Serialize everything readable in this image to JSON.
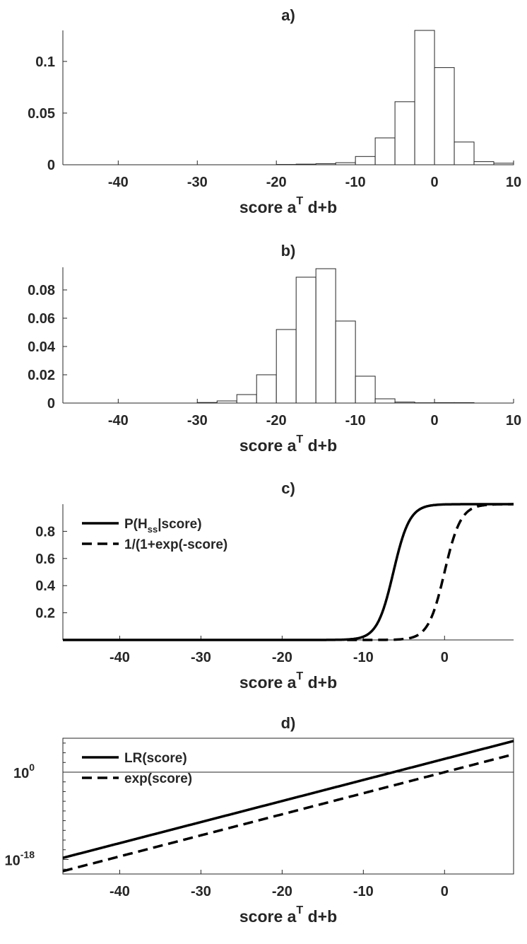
{
  "chart_data": [
    {
      "type": "bar",
      "title": "a)",
      "xlabel": "score a",
      "xlabel_sup": "T",
      "xlabel_tail": " d+b",
      "xlim": [
        -47,
        10
      ],
      "ylim": [
        0,
        0.13
      ],
      "xticks": [
        -40,
        -30,
        -20,
        -10,
        0,
        10
      ],
      "yticks": [
        0,
        0.05,
        0.1
      ],
      "ytick_labels": [
        "0",
        "0.05",
        "0.1"
      ],
      "bin_width": 2.5,
      "bin_centers": [
        -18.75,
        -16.25,
        -13.75,
        -11.25,
        -8.75,
        -6.25,
        -3.75,
        -1.25,
        1.25,
        3.75,
        6.25,
        8.75
      ],
      "values": [
        0.0003,
        0.0006,
        0.001,
        0.002,
        0.008,
        0.026,
        0.061,
        0.13,
        0.094,
        0.022,
        0.003,
        0.0015
      ]
    },
    {
      "type": "bar",
      "title": "b)",
      "xlabel": "score a",
      "xlabel_sup": "T",
      "xlabel_tail": " d+b",
      "xlim": [
        -47,
        10
      ],
      "ylim": [
        0,
        0.096
      ],
      "xticks": [
        -40,
        -30,
        -20,
        -10,
        0,
        10
      ],
      "yticks": [
        0,
        0.02,
        0.04,
        0.06,
        0.08
      ],
      "ytick_labels": [
        "0",
        "0.02",
        "0.04",
        "0.06",
        "0.08"
      ],
      "bin_width": 2.5,
      "bin_centers": [
        -28.75,
        -26.25,
        -23.75,
        -21.25,
        -18.75,
        -16.25,
        -13.75,
        -11.25,
        -8.75,
        -6.25,
        -3.75,
        -1.25,
        1.25,
        3.75
      ],
      "values": [
        0.0004,
        0.0015,
        0.006,
        0.02,
        0.052,
        0.089,
        0.095,
        0.058,
        0.019,
        0.003,
        0.0007,
        0.0002,
        0.0003,
        0.0003
      ]
    },
    {
      "type": "line",
      "title": "c)",
      "xlabel": "score a",
      "xlabel_sup": "T",
      "xlabel_tail": " d+b",
      "xlim": [
        -47,
        8.5
      ],
      "ylim": [
        0,
        1
      ],
      "xticks": [
        -40,
        -30,
        -20,
        -10,
        0
      ],
      "yticks": [
        0.2,
        0.4,
        0.6,
        0.8
      ],
      "ytick_labels": [
        "0.2",
        "0.4",
        "0.6",
        "0.8"
      ],
      "legend_position": "top-left",
      "series": [
        {
          "name": "P(H",
          "name_sub": "ss",
          "name_tail": "|score)",
          "style": "solid",
          "shift": 6.3,
          "x_start": -47
        },
        {
          "name": "1/(1+exp(-score)",
          "name_sub": "",
          "name_tail": "",
          "style": "dashed",
          "shift": 0,
          "x_start": -12
        }
      ]
    },
    {
      "type": "line",
      "title": "d)",
      "xlabel": "score a",
      "xlabel_sup": "T",
      "xlabel_tail": " d+b",
      "log_scale_y": true,
      "xlim": [
        -47,
        8.5
      ],
      "ylim_log10": [
        -21,
        7
      ],
      "xticks": [
        -40,
        -30,
        -20,
        -10,
        0
      ],
      "yticks_log10": [
        0,
        -18
      ],
      "ytick_base": "10",
      "ytick_exponents": [
        "0",
        "-18"
      ],
      "minor_ticks_log10": [
        -20,
        -16,
        -14,
        -12,
        -10,
        -8,
        -6,
        -4,
        -2,
        2,
        4,
        6
      ],
      "reference_line_log10": 0,
      "legend_position": "top-left",
      "series": [
        {
          "name": "LR(score)",
          "style": "solid",
          "shift": 6.3
        },
        {
          "name": "exp(score)",
          "style": "dashed",
          "shift": 0
        }
      ]
    }
  ]
}
